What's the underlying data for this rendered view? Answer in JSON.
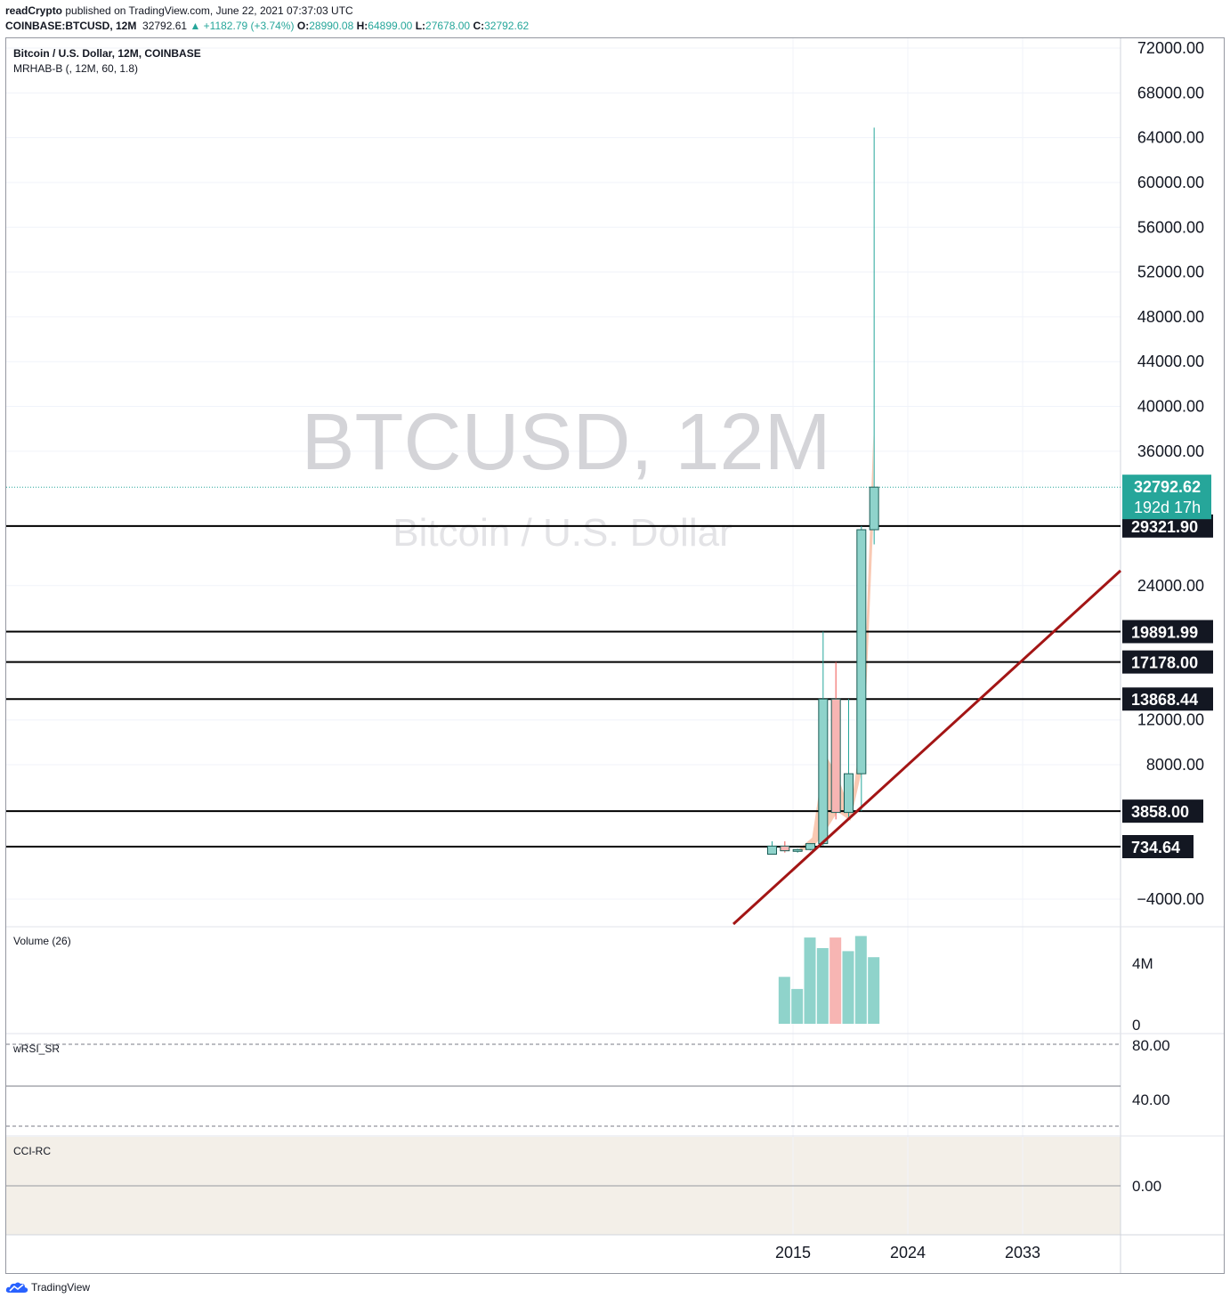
{
  "header": {
    "author": "readCrypto",
    "published_text": "published on TradingView.com, June 22, 2021 07:37:03 UTC",
    "symbol": "COINBASE:BTCUSD, 12M",
    "last": "32792.61",
    "change": "+1182.79 (+3.74%)",
    "o_label": "O:",
    "o_value": "28990.08",
    "h_label": "H:",
    "h_value": "64899.00",
    "l_label": "L:",
    "l_value": "27678.00",
    "c_label": "C:",
    "c_value": "32792.62"
  },
  "legend": {
    "title": "Bitcoin / U.S. Dollar, 12M, COINBASE",
    "indicator": "MRHAB-B (, 12M, 60, 1.8)"
  },
  "watermark": {
    "symbol": "BTCUSD, 12M",
    "name": "Bitcoin / U.S. Dollar"
  },
  "panes": {
    "volume": {
      "title": "Volume (26)",
      "ticks": [
        "4M",
        "0"
      ]
    },
    "wrsi": {
      "title": "wRSI_SR",
      "ticks": [
        "80.00",
        "40.00"
      ]
    },
    "cci": {
      "title": "CCI-RC",
      "ticks": [
        "0.00"
      ]
    }
  },
  "footer": {
    "brand": "TradingView"
  },
  "colors": {
    "up": "#26a69a",
    "up_fill": "#8fd3cb",
    "down": "#ef5350",
    "down_fill": "#f7b5b3",
    "band": "#f7b79a",
    "trendline": "#a31515",
    "cci_bg": "#f3efe8",
    "level": "#000000"
  },
  "chart_data": {
    "type": "candlestick",
    "title": "Bitcoin / U.S. Dollar, 12M, COINBASE",
    "ylim": [
      -5000,
      72500
    ],
    "y_ticks": [
      -4000,
      8000,
      12000,
      24000,
      36000,
      40000,
      44000,
      48000,
      52000,
      56000,
      60000,
      64000,
      68000,
      72000
    ],
    "y_tick_labels": [
      "−4000.00",
      "8000.00",
      "12000.00",
      "24000.00",
      "36000.00",
      "40000.00",
      "44000.00",
      "48000.00",
      "52000.00",
      "56000.00",
      "60000.00",
      "64000.00",
      "68000.00",
      "72000.00"
    ],
    "x_ticks": [
      "2015",
      "2024",
      "2033"
    ],
    "candles": [
      {
        "year": 2013,
        "open": 13,
        "high": 1163,
        "low": 13,
        "close": 740
      },
      {
        "year": 2014,
        "open": 740,
        "high": 1165,
        "low": 160,
        "close": 320
      },
      {
        "year": 2015,
        "open": 320,
        "high": 500,
        "low": 150,
        "close": 430
      },
      {
        "year": 2016,
        "open": 430,
        "high": 980,
        "low": 350,
        "close": 960
      },
      {
        "year": 2017,
        "open": 960,
        "high": 19891.99,
        "low": 750,
        "close": 13868.44
      },
      {
        "year": 2018,
        "open": 13868.44,
        "high": 17178,
        "low": 3122,
        "close": 3742
      },
      {
        "year": 2019,
        "open": 3742,
        "high": 13880,
        "low": 3350,
        "close": 7200
      },
      {
        "year": 2020,
        "open": 7200,
        "high": 29321.9,
        "low": 3858,
        "close": 28990.08
      },
      {
        "year": 2021,
        "open": 28990.08,
        "high": 64899,
        "low": 27678,
        "close": 32792.62
      }
    ],
    "levels": [
      29321.9,
      19891.99,
      17178.0,
      13868.44,
      3858.0,
      734.64
    ],
    "level_labels": [
      "29321.90",
      "19891.99",
      "17178.00",
      "13868.44",
      "3858.00",
      "734.64"
    ],
    "last_price": {
      "value": 32792.62,
      "label": "32792.62",
      "countdown": "192d 17h"
    },
    "volume": {
      "years": [
        2014,
        2015,
        2016,
        2017,
        2018,
        2019,
        2020,
        2021
      ],
      "values": [
        3100000,
        2300000,
        5700000,
        5000000,
        5700000,
        4800000,
        5800000,
        4400000
      ],
      "ylim": [
        0,
        7000000
      ]
    }
  }
}
